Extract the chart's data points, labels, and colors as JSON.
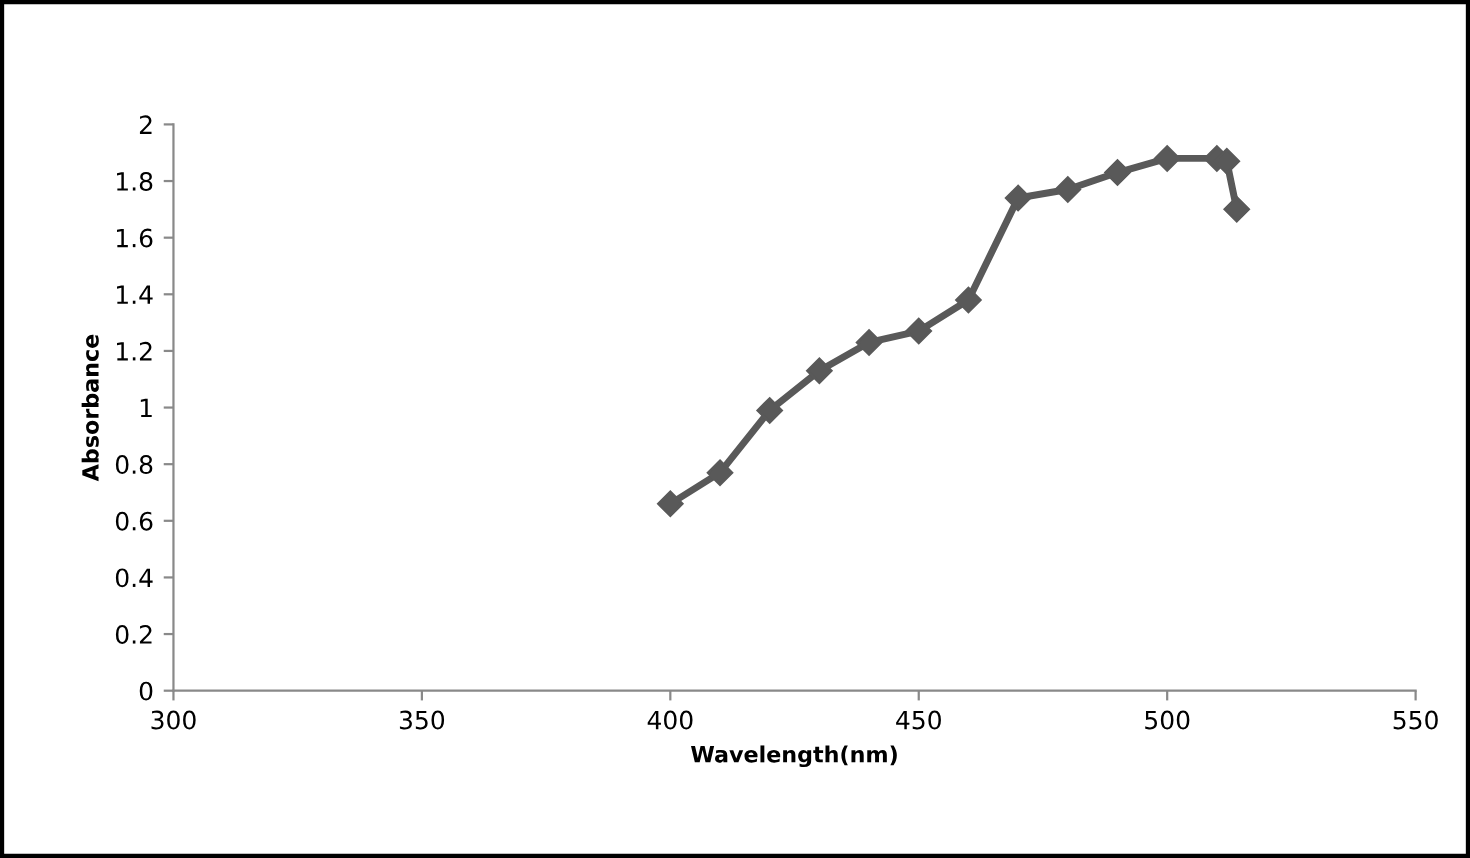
{
  "chart_data": {
    "type": "line",
    "xlabel": "Wavelength(nm)",
    "ylabel": "Absorbance",
    "series": [
      {
        "color": "#595959",
        "x": [
          400,
          410,
          420,
          430,
          440,
          450,
          460,
          470,
          480,
          490,
          500,
          510,
          512,
          514
        ],
        "values": [
          0.66,
          0.77,
          0.99,
          1.13,
          1.23,
          1.27,
          1.38,
          1.74,
          1.77,
          1.83,
          1.88,
          1.88,
          1.87,
          1.7
        ]
      }
    ],
    "xlim": [
      300,
      550
    ],
    "xticks": [
      300,
      350,
      400,
      450,
      500,
      550
    ],
    "ylim": [
      0,
      2
    ],
    "yticks": [
      0,
      0.2,
      0.4,
      0.6,
      0.8,
      1,
      1.2,
      1.4,
      1.6,
      1.8,
      2
    ],
    "marker": "diamond",
    "line_style": "solid",
    "grid": false,
    "legend": false
  }
}
